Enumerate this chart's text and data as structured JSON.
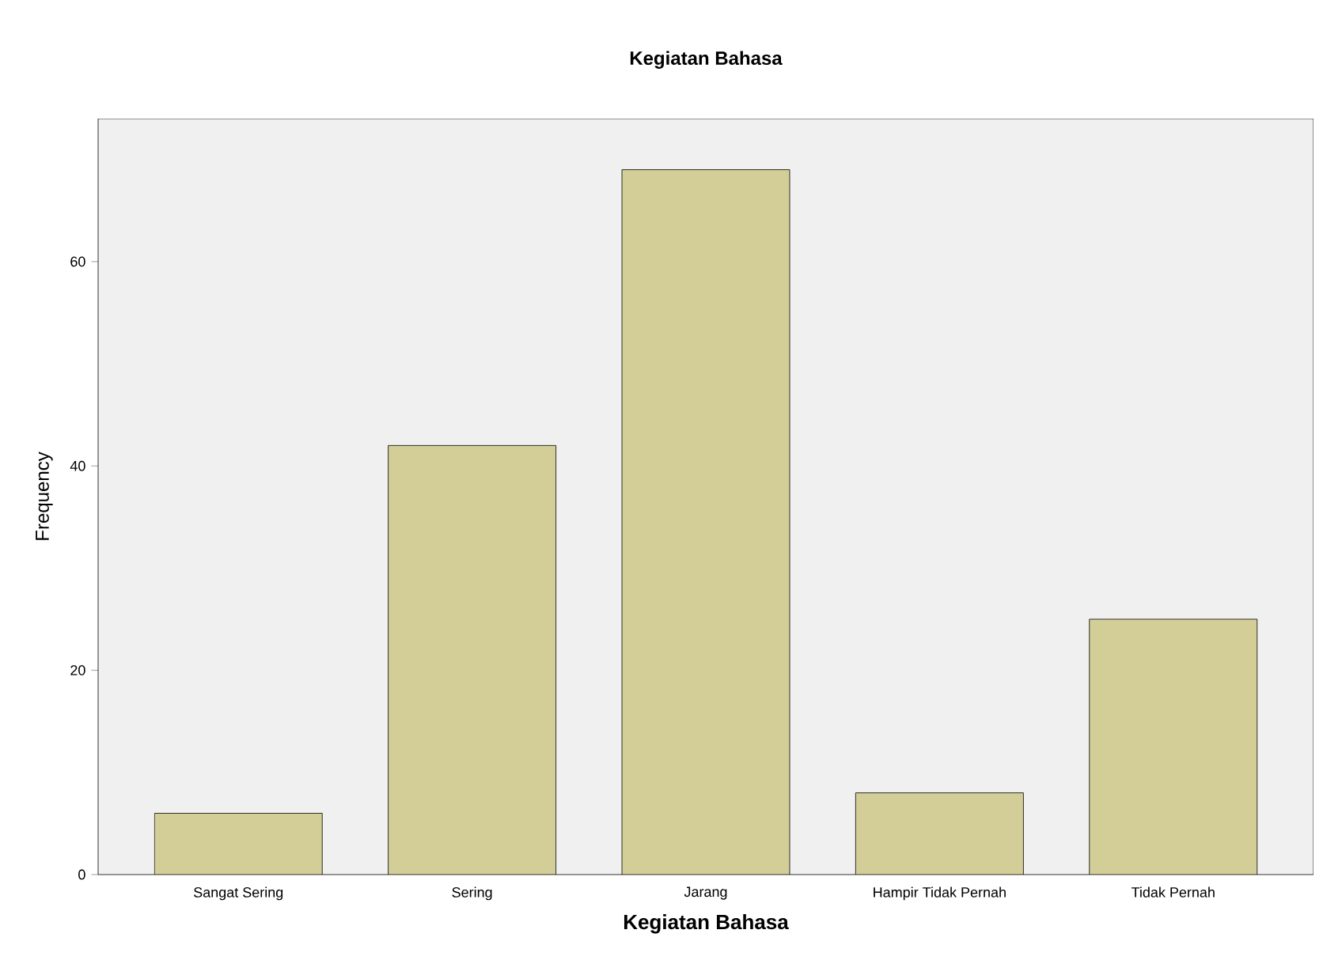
{
  "chart_data": {
    "type": "bar",
    "title": "Kegiatan Bahasa",
    "xlabel": "Kegiatan Bahasa",
    "ylabel": "Frequency",
    "categories": [
      "Sangat Sering",
      "Sering",
      "Jarang",
      "Hampir Tidak Pernah",
      "Tidak Pernah"
    ],
    "values": [
      6,
      42,
      69,
      8,
      25
    ],
    "color": "#d3ce97",
    "ylim": [
      0,
      74
    ],
    "yticks": [
      0,
      20,
      40,
      60
    ]
  }
}
